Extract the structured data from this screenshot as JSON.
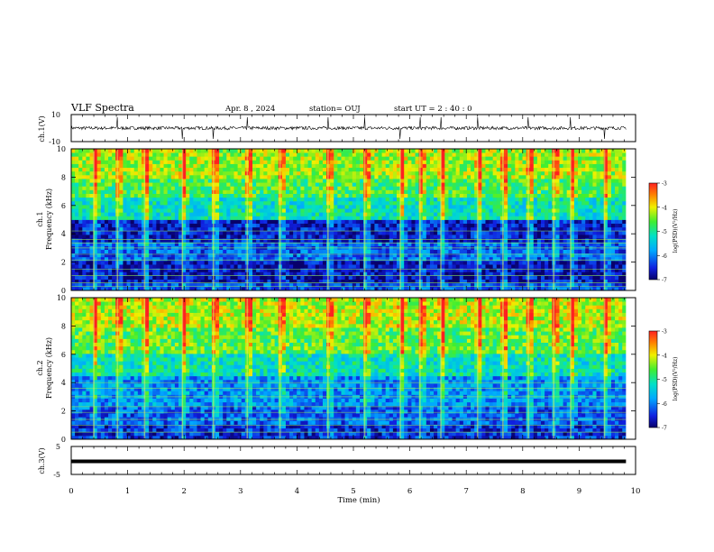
{
  "header": {
    "title": "VLF Spectra",
    "date": "Apr. 8 , 2024",
    "station": "station= OUJ",
    "start": "start  UT =   2 : 40 : 0"
  },
  "chart_data": [
    {
      "type": "line",
      "panel": "ch1-waveform",
      "ylabel": "ch.1(V)",
      "ylim": [
        -10,
        10
      ],
      "y_ticks": [
        "10",
        "-10"
      ],
      "baseline": 0,
      "noise_amplitude": 1.2,
      "spikes_min": [
        0.82,
        1.97,
        2.52,
        3.12,
        4.55,
        5.2,
        5.83,
        6.18,
        6.55,
        7.2,
        8.1,
        8.85,
        9.45
      ]
    },
    {
      "type": "heatmap",
      "panel": "ch1-spectrogram",
      "ylabel_top": "ch.1",
      "ylabel": "Frequency (kHz)",
      "ylim": [
        0,
        10
      ],
      "y_ticks": [
        "0",
        "2",
        "4",
        "6",
        "8",
        "10"
      ],
      "xlim": [
        0,
        9.83
      ],
      "colorbar": {
        "label": "log(PSD)(V²/Hz)",
        "ticks": [
          "-3",
          "-4",
          "-5",
          "-6",
          "-7"
        ],
        "range": [
          -7,
          -3
        ]
      },
      "bands": [
        {
          "f_low": 0,
          "f_high": 0.5,
          "log_psd": -6.3
        },
        {
          "f_low": 0.5,
          "f_high": 2.0,
          "log_psd": -6.7
        },
        {
          "f_low": 2.0,
          "f_high": 3.5,
          "log_psd": -6.2
        },
        {
          "f_low": 3.5,
          "f_high": 5.0,
          "log_psd": -6.6
        },
        {
          "f_low": 5.0,
          "f_high": 6.5,
          "log_psd": -5.2
        },
        {
          "f_low": 6.5,
          "f_high": 8.0,
          "log_psd": -4.7
        },
        {
          "f_low": 8.0,
          "f_high": 10.0,
          "log_psd": -4.3
        }
      ],
      "lines_khz": [
        0.3,
        0.55,
        1.05,
        1.5,
        2.15,
        2.55,
        3.0,
        3.35,
        3.6,
        4.2
      ],
      "sferics_min": [
        0.4,
        0.82,
        1.3,
        1.97,
        2.52,
        3.12,
        3.7,
        4.55,
        5.2,
        5.83,
        6.18,
        6.55,
        7.2,
        7.65,
        8.1,
        8.55,
        8.85,
        9.45
      ]
    },
    {
      "type": "heatmap",
      "panel": "ch2-spectrogram",
      "ylabel_top": "ch.2",
      "ylabel": "Frequency (kHz)",
      "ylim": [
        0,
        10
      ],
      "y_ticks": [
        "0",
        "2",
        "4",
        "6",
        "8",
        "10"
      ],
      "xlim": [
        0,
        9.83
      ],
      "colorbar": {
        "label": "log(PSD)(V²/Hz)",
        "ticks": [
          "-3",
          "-4",
          "-5",
          "-6",
          "-7"
        ],
        "range": [
          -7,
          -3
        ]
      },
      "bands": [
        {
          "f_low": 0,
          "f_high": 1.0,
          "log_psd": -6.5
        },
        {
          "f_low": 1.0,
          "f_high": 2.5,
          "log_psd": -6.2
        },
        {
          "f_low": 2.5,
          "f_high": 4.5,
          "log_psd": -5.9
        },
        {
          "f_low": 4.5,
          "f_high": 6.0,
          "log_psd": -5.2
        },
        {
          "f_low": 6.0,
          "f_high": 8.0,
          "log_psd": -4.6
        },
        {
          "f_low": 8.0,
          "f_high": 10.0,
          "log_psd": -4.2
        }
      ],
      "lines_khz": [
        0.5,
        1.0,
        1.4,
        1.9,
        2.3,
        3.0,
        3.6,
        4.0
      ],
      "sferics_min": [
        0.4,
        0.82,
        1.3,
        1.97,
        2.52,
        3.12,
        3.7,
        4.55,
        5.2,
        5.83,
        6.18,
        6.55,
        7.2,
        7.65,
        8.1,
        8.55,
        8.85,
        9.45
      ]
    },
    {
      "type": "line",
      "panel": "ch3-waveform",
      "ylabel": "ch.3(V)",
      "ylim": [
        -5,
        5
      ],
      "y_ticks": [
        "5",
        "-5"
      ],
      "baseline": 0,
      "noise_amplitude": 0.35
    }
  ],
  "x_axis": {
    "label": "Time (min)",
    "ticks": [
      "0",
      "1",
      "2",
      "3",
      "4",
      "5",
      "6",
      "7",
      "8",
      "9",
      "10"
    ],
    "xlim": [
      0,
      10
    ]
  }
}
